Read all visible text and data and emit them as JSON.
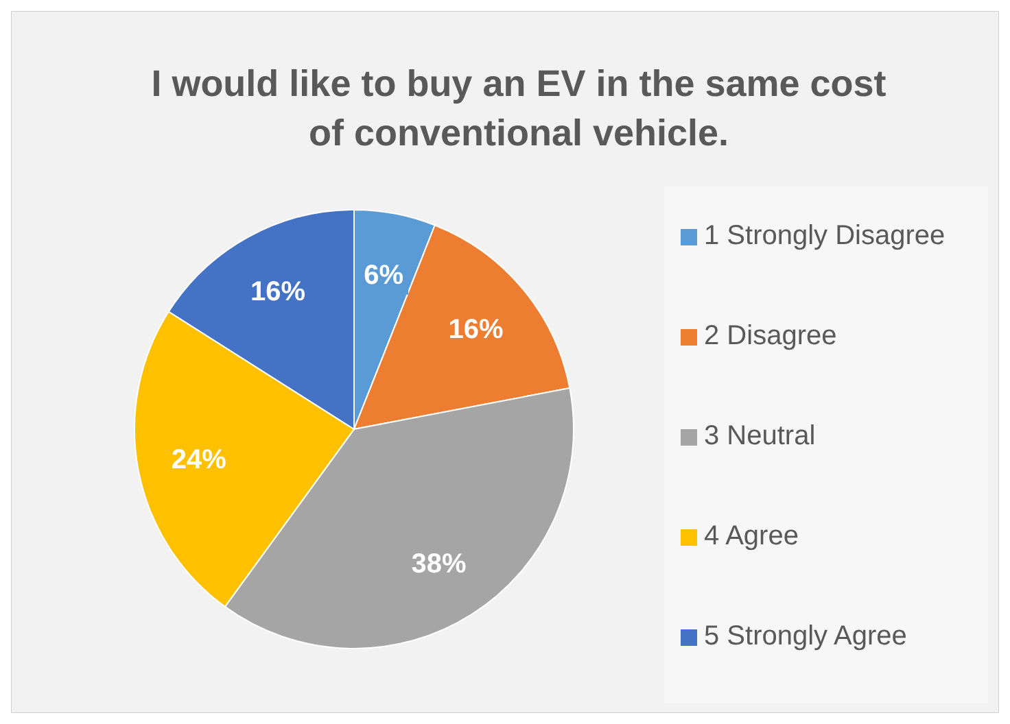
{
  "chart_data": {
    "type": "pie",
    "title": "I would like to buy an EV in the same cost of conventional vehicle.",
    "categories": [
      "1 Strongly Disagree",
      "2 Disagree",
      "3 Neutral",
      "4 Agree",
      "5 Strongly Agree"
    ],
    "values": [
      6,
      16,
      38,
      24,
      16
    ],
    "colors": [
      "#5b9bd5",
      "#ed7d31",
      "#a5a5a5",
      "#ffc000",
      "#4472c4"
    ],
    "value_labels": [
      "6%",
      "16%",
      "38%",
      "24%",
      "16%"
    ],
    "legend": "right"
  }
}
